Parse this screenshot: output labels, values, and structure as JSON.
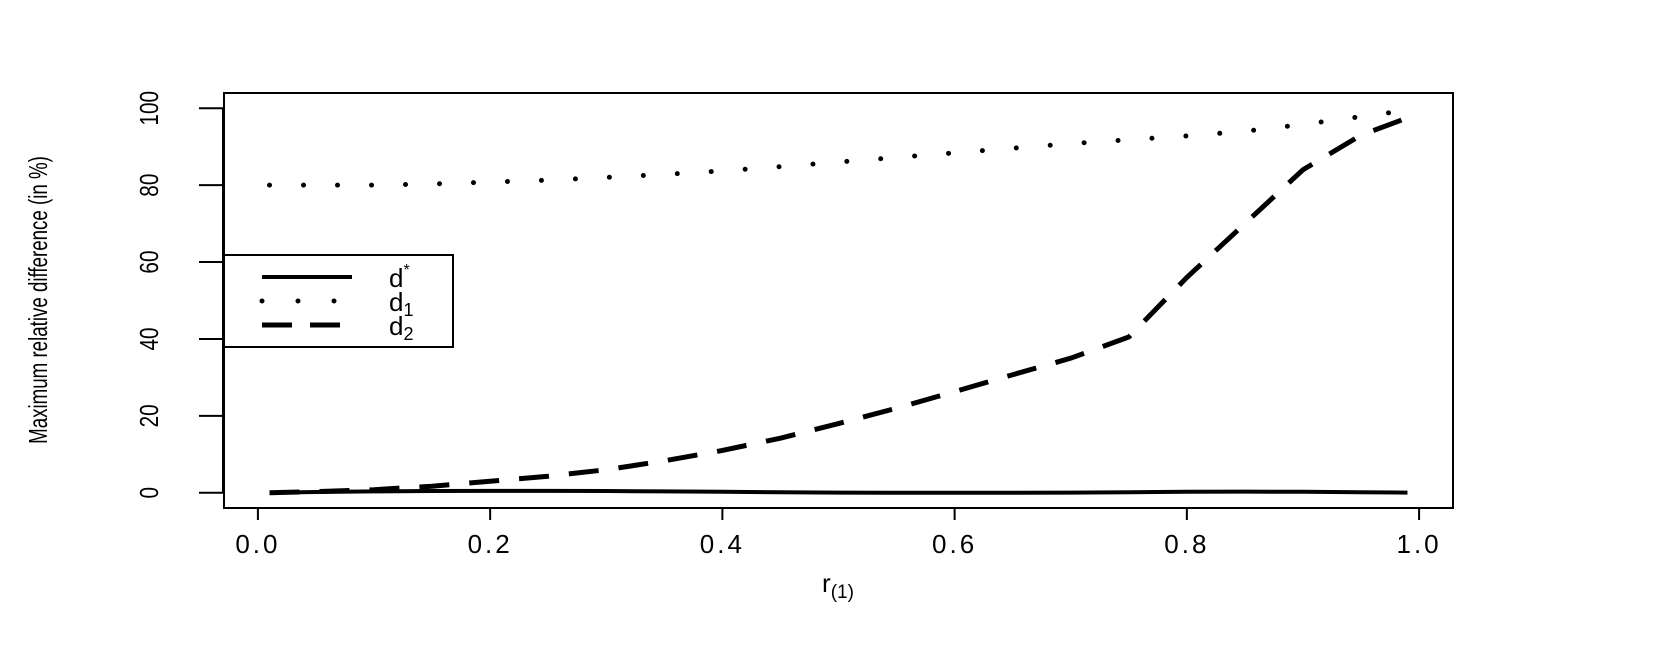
{
  "chart_data": {
    "type": "line",
    "x_label": "r",
    "x_label_sub": "(1)",
    "y_label": "Maximum relative difference (in %)",
    "x": [
      0.01,
      0.05,
      0.1,
      0.15,
      0.2,
      0.25,
      0.3,
      0.35,
      0.4,
      0.45,
      0.5,
      0.55,
      0.6,
      0.65,
      0.7,
      0.75,
      0.8,
      0.85,
      0.9,
      0.95,
      0.99
    ],
    "series": [
      {
        "name": "d",
        "name_sup": "*",
        "style": "solid",
        "color": "#000000",
        "values": [
          0,
          0.2,
          0.35,
          0.45,
          0.5,
          0.5,
          0.45,
          0.35,
          0.25,
          0.15,
          0.05,
          0,
          0,
          0,
          0.05,
          0.15,
          0.25,
          0.3,
          0.25,
          0.15,
          0.05
        ]
      },
      {
        "name": "d",
        "name_sub": "1",
        "style": "dotted",
        "color": "#000000",
        "values": [
          80,
          80,
          80,
          80.3,
          80.8,
          81.3,
          82,
          82.8,
          83.7,
          84.8,
          86,
          87.2,
          88.4,
          89.6,
          90.8,
          91.8,
          92.8,
          94,
          95.8,
          97.8,
          99.5
        ]
      },
      {
        "name": "d",
        "name_sub": "2",
        "style": "dashed",
        "color": "#000000",
        "values": [
          0,
          0.3,
          0.8,
          1.7,
          3,
          4.3,
          6,
          8.3,
          11,
          14.2,
          18,
          22,
          26.3,
          30.7,
          35,
          40.5,
          56,
          70,
          84,
          93,
          97.5
        ]
      }
    ],
    "xlim": [
      -0.0292,
      1.0292
    ],
    "xticks": [
      {
        "value": 0,
        "label": "0.0"
      },
      0.2,
      0.4,
      0.6,
      0.8,
      {
        "value": 1,
        "label": "1.0"
      }
    ],
    "ylim": [
      -3.96,
      103.96
    ],
    "yticks": [
      0,
      20,
      40,
      60,
      80,
      100
    ],
    "legend": "left"
  }
}
